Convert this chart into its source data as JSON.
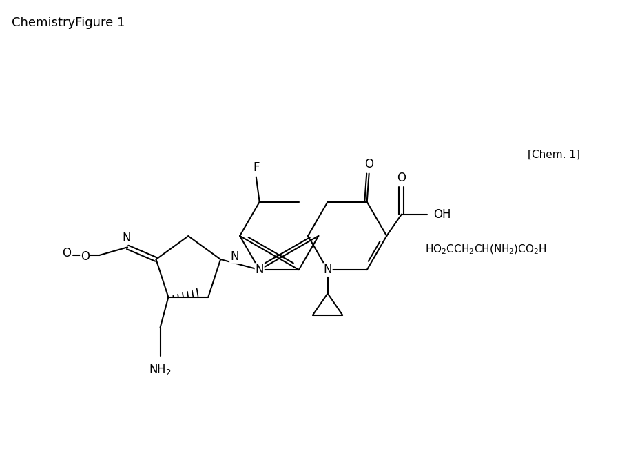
{
  "title": "ChemistryFigure 1",
  "chem_label": "[Chem. 1]",
  "background_color": "#ffffff",
  "line_color": "#000000",
  "title_fontsize": 13,
  "label_fontsize": 12,
  "annotation_fontsize": 11,
  "figsize": [
    9.0,
    6.77
  ],
  "dpi": 100,
  "aspartic_acid": "HO₂CCH₂CH(NH₂)CO₂H"
}
